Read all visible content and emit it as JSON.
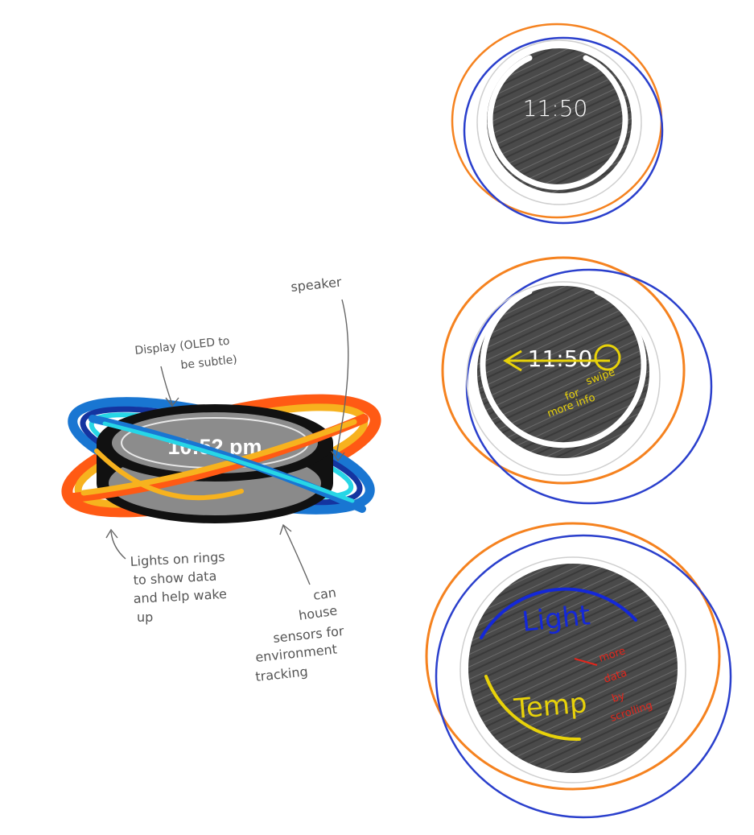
{
  "device": {
    "time": "10:52 pm",
    "ring_colors": {
      "orange": "#ff5a14",
      "amber": "#f7b21e",
      "blue": "#1976d2",
      "navy": "#1434a0",
      "cyan": "#27d6e6",
      "body": "#111111",
      "screen": "#8c8c8c"
    }
  },
  "annotations": {
    "speaker": "speaker",
    "display_line1": "Display (OLED to",
    "display_line2": "be subtle)",
    "lights_line1": "Lights on rings",
    "lights_line2": "to show data",
    "lights_line3": "and help wake",
    "lights_line4": "up",
    "sensors_line1": "can",
    "sensors_line2": "house",
    "sensors_line3": "sensors for",
    "sensors_line4": "environment",
    "sensors_line5": "tracking"
  },
  "screens": {
    "screen1": {
      "time": "11:50"
    },
    "screen2": {
      "time": "11:50",
      "note_line1": "swipe",
      "note_line2": "for",
      "note_line3": "more info"
    },
    "screen3": {
      "label_top": "Light",
      "label_bottom": "Temp",
      "note_line1": "more",
      "note_line2": "data",
      "note_line3": "by",
      "note_line4": "scrolling"
    }
  },
  "colors": {
    "screen_fill": "#4a4a4a",
    "orbit_orange": "#f5821f",
    "orbit_blue": "#2a3fcc",
    "yellow_note": "#e8d20a",
    "red_note": "#e2261c",
    "blue_arc": "#1428d8"
  }
}
